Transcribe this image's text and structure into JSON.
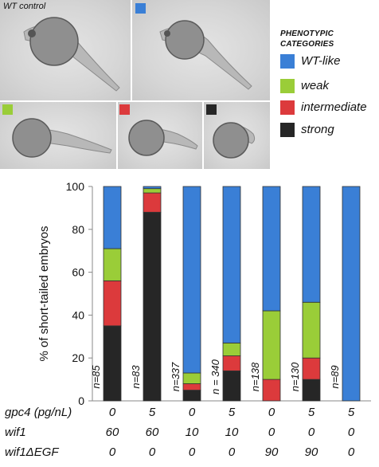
{
  "panel_labels": {
    "wt_control": "WT control"
  },
  "legend": {
    "title_line1": "PHENOTYPIC",
    "title_line2": "CATEGORIES",
    "items": [
      {
        "label": "WT-like",
        "color": "#3a7fd6"
      },
      {
        "label": "weak",
        "color": "#9acd38"
      },
      {
        "label": "intermediate",
        "color": "#dc3a3c"
      },
      {
        "label": "strong",
        "color": "#262626"
      }
    ]
  },
  "chart_data": {
    "type": "bar",
    "stacked": true,
    "ylabel": "% of short-tailed embryos",
    "ylim": [
      0,
      100
    ],
    "yticks": [
      0,
      20,
      40,
      60,
      80,
      100
    ],
    "n_labels": [
      "n=85",
      "n=83",
      "n=337",
      "n = 340",
      "n=138",
      "n=130",
      "n=89"
    ],
    "series": [
      {
        "name": "strong",
        "color": "#262626",
        "values": [
          35,
          88,
          5,
          14,
          0,
          10,
          0
        ]
      },
      {
        "name": "intermediate",
        "color": "#dc3a3c",
        "values": [
          21,
          9,
          3,
          7,
          10,
          10,
          0
        ]
      },
      {
        "name": "weak",
        "color": "#9acd38",
        "values": [
          15,
          2,
          5,
          6,
          32,
          26,
          0
        ]
      },
      {
        "name": "WT-like",
        "color": "#3a7fd6",
        "values": [
          29,
          1,
          87,
          73,
          58,
          54,
          100
        ]
      }
    ],
    "conditions": [
      {
        "label": "gpc4 (pg/nL)",
        "values": [
          "0",
          "5",
          "0",
          "5",
          "0",
          "5",
          "5"
        ]
      },
      {
        "label": "wif1",
        "values": [
          "60",
          "60",
          "10",
          "10",
          "0",
          "0",
          "0"
        ]
      },
      {
        "label": "wif1ΔEGF",
        "values": [
          "0",
          "0",
          "0",
          "0",
          "90",
          "90",
          "0"
        ]
      }
    ],
    "grid": false
  }
}
